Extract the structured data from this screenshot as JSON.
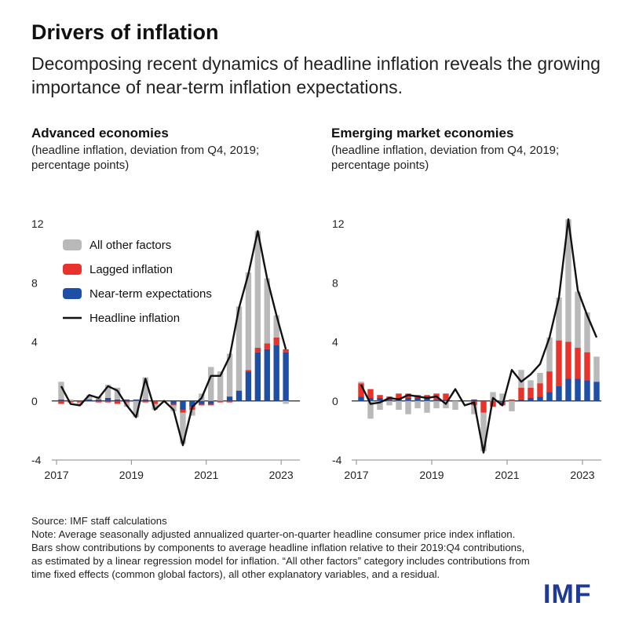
{
  "title": "Drivers of inflation",
  "subtitle": "Decomposing recent dynamics of headline inflation reveals the growing importance of near-term inflation expectations.",
  "colors": {
    "other": "#b9b9b9",
    "lagged": "#e8332c",
    "expectations": "#1e4fa6",
    "headline": "#111111",
    "axis": "#888888"
  },
  "legend": [
    {
      "key": "other",
      "label": "All other factors",
      "kind": "box"
    },
    {
      "key": "lagged",
      "label": "Lagged inflation",
      "kind": "box"
    },
    {
      "key": "expectations",
      "label": "Near-term expectations",
      "kind": "box"
    },
    {
      "key": "headline",
      "label": "Headline inflation",
      "kind": "line"
    }
  ],
  "chart_data": [
    {
      "type": "bar",
      "stacked": true,
      "title": "Advanced economies",
      "subtitle": "(headline inflation, deviation from Q4, 2019; percentage points)",
      "x_labels": [
        "2017",
        "2019",
        "2021",
        "2023"
      ],
      "x_label_index": [
        0,
        8,
        16,
        24
      ],
      "ylim": [
        -4,
        12
      ],
      "yticks": [
        -4,
        0,
        4,
        8,
        12
      ],
      "legend_position": "top-left",
      "categories": [
        "2017Q1",
        "2017Q2",
        "2017Q3",
        "2017Q4",
        "2018Q1",
        "2018Q2",
        "2018Q3",
        "2018Q4",
        "2019Q1",
        "2019Q2",
        "2019Q3",
        "2019Q4",
        "2020Q1",
        "2020Q2",
        "2020Q3",
        "2020Q4",
        "2021Q1",
        "2021Q2",
        "2021Q3",
        "2021Q4",
        "2022Q1",
        "2022Q2",
        "2022Q3",
        "2022Q4",
        "2023Q1",
        "2023Q2"
      ],
      "series": [
        {
          "name": "Near-term expectations",
          "key": "expectations",
          "values": [
            0.1,
            0,
            0,
            0.1,
            0.1,
            0.2,
            0.1,
            0.1,
            0.1,
            0.1,
            0,
            0,
            -0.2,
            -0.6,
            -0.4,
            -0.2,
            -0.2,
            0,
            0.3,
            0.7,
            2.0,
            3.3,
            3.5,
            3.8,
            3.3,
            0
          ]
        },
        {
          "name": "Lagged inflation",
          "key": "lagged",
          "values": [
            -0.2,
            -0.1,
            -0.1,
            0,
            -0.1,
            -0.1,
            -0.2,
            -0.1,
            0,
            -0.1,
            -0.2,
            0,
            -0.1,
            -0.2,
            -0.2,
            -0.1,
            -0.1,
            -0.1,
            -0.1,
            0,
            0.1,
            0.3,
            0.4,
            0.5,
            0.2,
            0
          ]
        },
        {
          "name": "All other factors",
          "key": "other",
          "values": [
            1.2,
            0.1,
            -0.2,
            0.3,
            0.2,
            0.9,
            0.8,
            -0.3,
            -1.1,
            1.5,
            -0.4,
            0,
            -0.4,
            -2.1,
            -0.4,
            0.5,
            2.3,
            2.0,
            2.9,
            5.7,
            6.6,
            7.9,
            4.4,
            1.5,
            -0.2,
            0
          ]
        }
      ],
      "headline": [
        1.0,
        -0.2,
        -0.3,
        0.4,
        0.2,
        1.0,
        0.7,
        -0.3,
        -1.1,
        1.5,
        -0.6,
        0,
        -0.6,
        -3.0,
        -0.4,
        0.2,
        1.7,
        1.7,
        3.0,
        6.3,
        8.6,
        11.5,
        8.3,
        5.8,
        3.5,
        null
      ]
    },
    {
      "type": "bar",
      "stacked": true,
      "title": "Emerging market economies",
      "subtitle": "(headline inflation, deviation from Q4, 2019; percentage points)",
      "x_labels": [
        "2017",
        "2019",
        "2021",
        "2023"
      ],
      "x_label_index": [
        0,
        8,
        16,
        24
      ],
      "ylim": [
        -4,
        12
      ],
      "yticks": [
        -4,
        0,
        4,
        8,
        12
      ],
      "categories": [
        "2017Q1",
        "2017Q2",
        "2017Q3",
        "2017Q4",
        "2018Q1",
        "2018Q2",
        "2018Q3",
        "2018Q4",
        "2019Q1",
        "2019Q2",
        "2019Q3",
        "2019Q4",
        "2020Q1",
        "2020Q2",
        "2020Q3",
        "2020Q4",
        "2021Q1",
        "2021Q2",
        "2021Q3",
        "2021Q4",
        "2022Q1",
        "2022Q2",
        "2022Q3",
        "2022Q4",
        "2023Q1",
        "2023Q2"
      ],
      "series": [
        {
          "name": "Near-term expectations",
          "key": "expectations",
          "values": [
            0.3,
            0.2,
            0.2,
            0.1,
            0.2,
            0.2,
            0.2,
            0.2,
            0.1,
            0.1,
            0,
            0,
            0.1,
            0,
            0,
            -0.1,
            0,
            0.1,
            0.2,
            0.3,
            0.6,
            1.0,
            1.5,
            1.5,
            1.4,
            1.3
          ]
        },
        {
          "name": "Lagged inflation",
          "key": "lagged",
          "values": [
            0.9,
            0.6,
            0.2,
            0.2,
            0.3,
            0.3,
            0.2,
            0.2,
            0.4,
            0.4,
            0,
            0,
            -0.3,
            -0.8,
            -0.4,
            -0.2,
            0.1,
            0.8,
            0.7,
            0.9,
            1.4,
            3.1,
            2.5,
            2.1,
            1.9,
            0
          ]
        },
        {
          "name": "All other factors",
          "key": "other",
          "values": [
            0.1,
            -1.2,
            -0.6,
            -0.3,
            -0.6,
            -0.9,
            -0.5,
            -0.8,
            -0.5,
            -0.5,
            -0.6,
            0,
            -0.6,
            -2.6,
            0.6,
            0.5,
            -0.7,
            1.2,
            0.5,
            0.7,
            2.3,
            2.9,
            8.3,
            3.8,
            2.7,
            1.7
          ]
        }
      ],
      "headline": [
        1.1,
        -0.2,
        -0.1,
        0.2,
        0.1,
        0.4,
        0.3,
        0.2,
        0.3,
        -0.2,
        0.8,
        -0.3,
        -0.1,
        -3.5,
        0.2,
        -0.3,
        2.1,
        1.3,
        1.8,
        2.5,
        4.3,
        7.0,
        12.3,
        7.5,
        5.8,
        4.3
      ]
    }
  ],
  "footer": {
    "source": "Source: IMF staff calculations",
    "note": "Note: Average seasonally adjusted annualized quarter-on-quarter headline consumer price index inflation. Bars show contributions by components to average headline inflation relative to their 2019:Q4 contributions, as estimated by a linear regression model for inflation. “All other factors” category includes contributions from time fixed effects (common global factors), all other explanatory variables, and a residual."
  },
  "logo": "IMF"
}
